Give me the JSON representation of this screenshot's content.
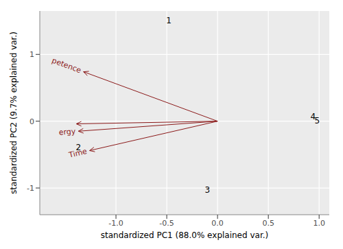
{
  "chart_data": {
    "type": "biplot",
    "x_label": "standardized PC1 (88.0% explained var.)",
    "y_label": "standardized PC2 (9.7% explained var.)",
    "xlim": [
      -1.75,
      1.1
    ],
    "ylim": [
      -1.4,
      1.65
    ],
    "xticks": [
      {
        "value": -1,
        "label": "-1.0"
      },
      {
        "value": -0.5,
        "label": "-0.5"
      },
      {
        "value": 0,
        "label": "0.0"
      },
      {
        "value": 0.5,
        "label": "0.5"
      },
      {
        "value": 1,
        "label": "1.0"
      }
    ],
    "yticks": [
      -1,
      0,
      1
    ],
    "grid": true,
    "points": {
      "labels": [
        "1",
        "2",
        "3",
        "4",
        "5"
      ],
      "x": [
        -0.48,
        -1.37,
        -0.1,
        0.94,
        0.98
      ],
      "y": [
        1.51,
        -0.39,
        -1.03,
        0.07,
        0.01
      ],
      "color": "#000000"
    },
    "arrows": {
      "labels": [
        "petence",
        null,
        "ergy",
        "Time"
      ],
      "x": [
        -1.32,
        -1.39,
        -1.37,
        -1.26
      ],
      "y": [
        0.74,
        -0.04,
        -0.15,
        -0.44
      ],
      "color": "#8b1a1a"
    }
  }
}
